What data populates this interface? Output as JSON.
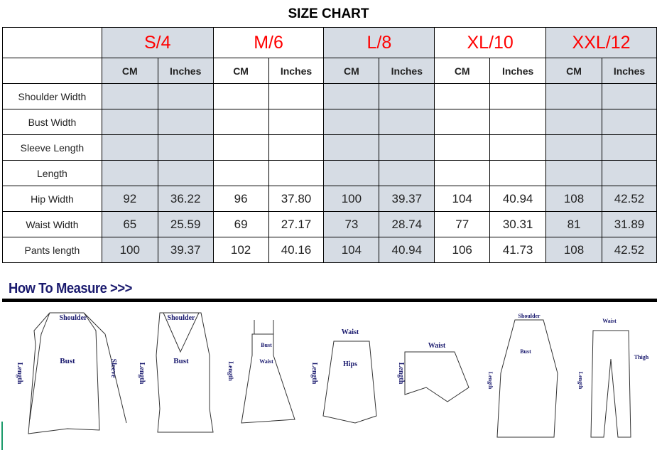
{
  "title": "SIZE CHART",
  "sizes": [
    "S/4",
    "M/6",
    "L/8",
    "XL/10",
    "XXL/12"
  ],
  "units": [
    "CM",
    "Inches"
  ],
  "rows": [
    {
      "label": "Shoulder Width",
      "values": [
        "",
        "",
        "",
        "",
        "",
        "",
        "",
        "",
        "",
        ""
      ]
    },
    {
      "label": "Bust Width",
      "values": [
        "",
        "",
        "",
        "",
        "",
        "",
        "",
        "",
        "",
        ""
      ]
    },
    {
      "label": "Sleeve Length",
      "values": [
        "",
        "",
        "",
        "",
        "",
        "",
        "",
        "",
        "",
        ""
      ]
    },
    {
      "label": "Length",
      "values": [
        "",
        "",
        "",
        "",
        "",
        "",
        "",
        "",
        "",
        ""
      ]
    },
    {
      "label": "Hip Width",
      "values": [
        "92",
        "36.22",
        "96",
        "37.80",
        "100",
        "39.37",
        "104",
        "40.94",
        "108",
        "42.52"
      ]
    },
    {
      "label": "Waist Width",
      "values": [
        "65",
        "25.59",
        "69",
        "27.17",
        "73",
        "28.74",
        "77",
        "30.31",
        "81",
        "31.89"
      ]
    },
    {
      "label": "Pants length",
      "values": [
        "100",
        "39.37",
        "102",
        "40.16",
        "104",
        "40.94",
        "106",
        "41.73",
        "108",
        "42.52"
      ]
    }
  ],
  "colors": {
    "size_label": "#ff0000",
    "shaded": "#d6dce4",
    "measure_heading": "#1a1a6e"
  },
  "measure": {
    "heading": "How To Measure >>>",
    "labels": {
      "shoulder": "Shoulder",
      "bust": "Bust",
      "sleeve": "Sleeve",
      "length": "Length",
      "waist": "Waist",
      "hips": "Hips",
      "thigh": "Thigh"
    }
  }
}
